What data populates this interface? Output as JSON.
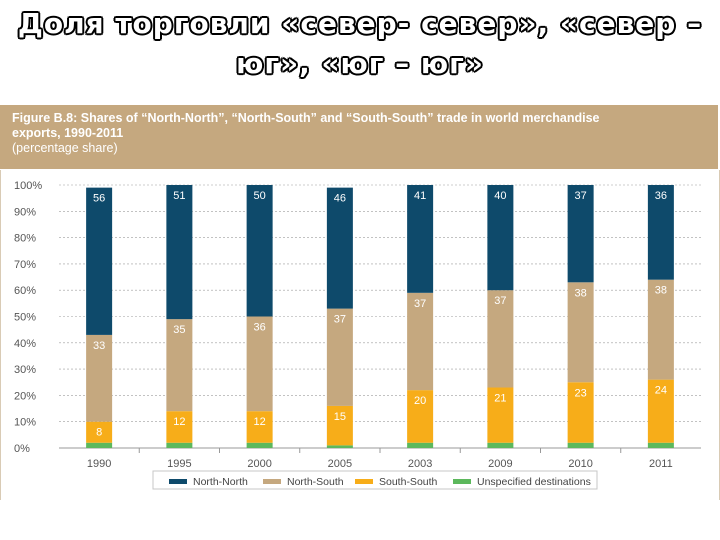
{
  "slide": {
    "title_line1": "Доля торговли «север- север», «север –",
    "title_line2": "юг», «юг – юг»"
  },
  "figure": {
    "title_line1": "Figure B.8: Shares of “North-North”, “North-South” and “South-South” trade in world merchandise",
    "title_line2": "exports, 1990-2011",
    "subtitle": "(percentage share)"
  },
  "chart_data": {
    "type": "bar",
    "stacked": true,
    "categories": [
      "1990",
      "1995",
      "2000",
      "2005",
      "2003",
      "2009",
      "2010",
      "2011"
    ],
    "y_ticks": [
      "0%",
      "10%",
      "20%",
      "30%",
      "40%",
      "50%",
      "60%",
      "70%",
      "80%",
      "90%",
      "100%"
    ],
    "ylim": [
      0,
      100
    ],
    "grid": true,
    "legend_position": "bottom",
    "series": [
      {
        "name": "Unspecified destinations",
        "color": "#5cb85c",
        "values": [
          2,
          2,
          2,
          1,
          2,
          2,
          2,
          2
        ],
        "labels": [
          "",
          "",
          "",
          "",
          "",
          "",
          "",
          ""
        ]
      },
      {
        "name": "South-South",
        "color": "#f7ad19",
        "values": [
          8,
          12,
          12,
          15,
          20,
          21,
          23,
          24
        ],
        "labels": [
          "8",
          "12",
          "12",
          "15",
          "20",
          "21",
          "23",
          "24"
        ]
      },
      {
        "name": "North-South",
        "color": "#c5a87f",
        "values": [
          33,
          35,
          36,
          37,
          37,
          37,
          38,
          38
        ],
        "labels": [
          "33",
          "35",
          "36",
          "37",
          "37",
          "37",
          "38",
          "38"
        ]
      },
      {
        "name": "North-North",
        "color": "#0e4a6b",
        "values": [
          56,
          51,
          50,
          46,
          41,
          40,
          37,
          36
        ],
        "labels": [
          "56",
          "51",
          "50",
          "46",
          "41",
          "40",
          "37",
          "36"
        ]
      }
    ],
    "legend_order": [
      "North-North",
      "North-South",
      "South-South",
      "Unspecified destinations"
    ]
  }
}
